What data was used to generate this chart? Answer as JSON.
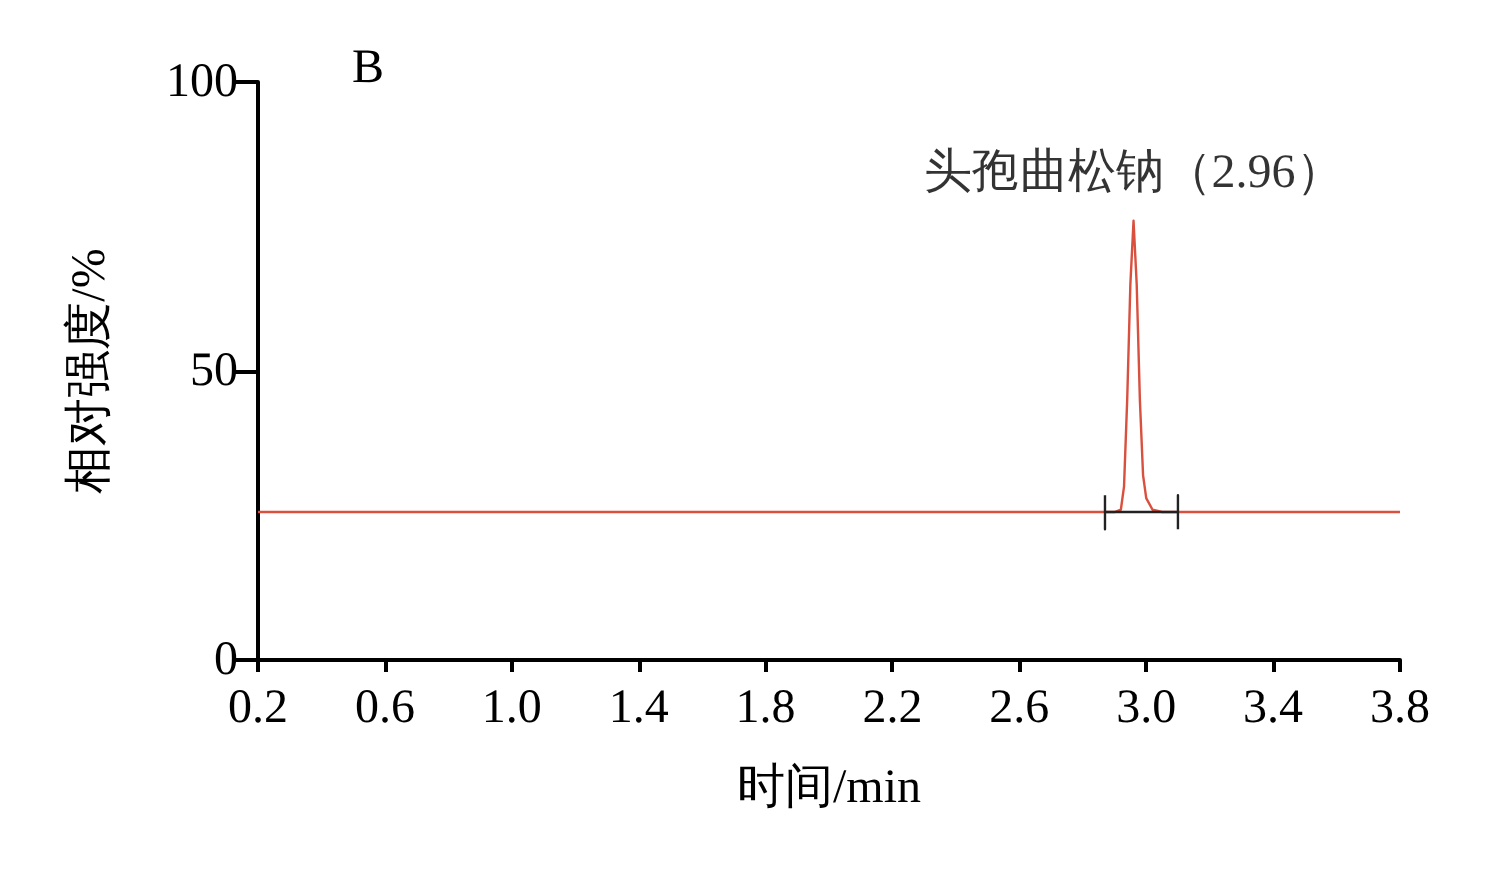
{
  "chart_data": {
    "type": "line",
    "xlabel": "时间/min",
    "ylabel": "相对强度/%",
    "xlim": [
      0.2,
      3.8
    ],
    "xticks": [
      0.2,
      0.6,
      {
        "value": 1,
        "label": "1.0"
      },
      1.4,
      1.8,
      2.2,
      2.6,
      {
        "value": 3,
        "label": "3.0"
      },
      3.4,
      3.8
    ],
    "ylim": [
      0,
      100
    ],
    "yticks": [
      0,
      50,
      100
    ],
    "marker": "none",
    "line_style": "solid",
    "series": [
      {
        "color": "#d9503f",
        "x": [
          0.2,
          1.0,
          2.0,
          2.9,
          2.92,
          2.93,
          2.94,
          2.95,
          2.96,
          2.97,
          2.98,
          2.99,
          3.0,
          3.02,
          3.05,
          3.4,
          3.8
        ],
        "values": [
          25.6,
          25.6,
          25.6,
          25.6,
          26,
          30,
          45,
          65,
          76,
          65,
          45,
          32,
          28,
          26,
          25.6,
          25.6,
          25.6
        ]
      },
      {
        "color": "#222222",
        "x": [
          2.87,
          2.87,
          2.87,
          3.1,
          3.1,
          3.1
        ],
        "values": [
          28.5,
          22.6,
          25.6,
          25.6,
          28.5,
          22.6
        ]
      }
    ],
    "annotations": [
      "B",
      {
        "text": "头孢曲松钠（2.96）",
        "x": 2.96,
        "y": 76
      }
    ]
  }
}
